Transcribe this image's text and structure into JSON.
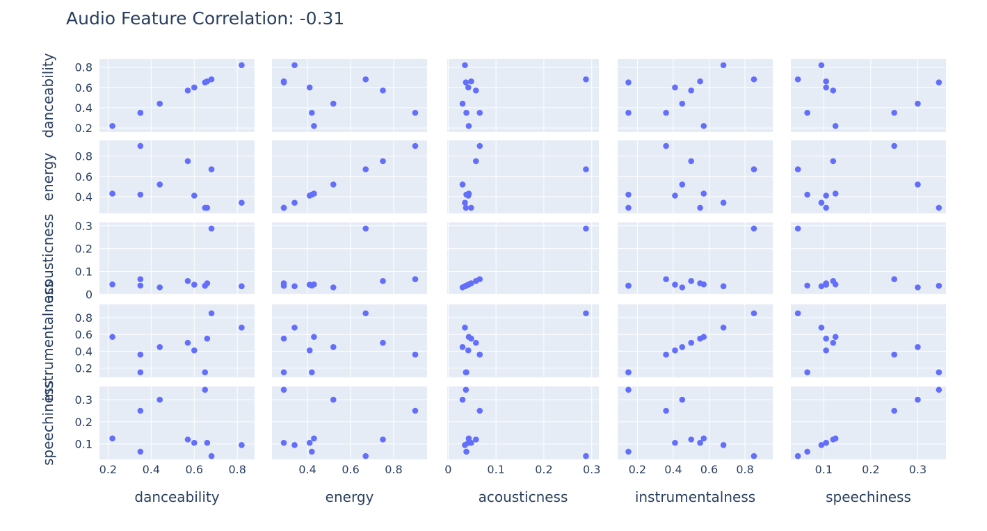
{
  "chart_data": {
    "type": "scatter",
    "subtype": "scatter-matrix",
    "title": "Audio Feature Correlation: -0.31",
    "dimensions": [
      "danceability",
      "energy",
      "acousticness",
      "instrumentalness",
      "speechiness"
    ],
    "ticks": {
      "danceability": [
        "0.2",
        "0.4",
        "0.6",
        "0.8"
      ],
      "energy": [
        "0.4",
        "0.6",
        "0.8"
      ],
      "acousticness": [
        "0",
        "0.1",
        "0.2",
        "0.3"
      ],
      "instrumentalness": [
        "0.2",
        "0.4",
        "0.6",
        "0.8"
      ],
      "speechiness": [
        "0.1",
        "0.2",
        "0.3"
      ]
    },
    "ranges": {
      "danceability": [
        0.16,
        0.88
      ],
      "energy": [
        0.235,
        0.955
      ],
      "acousticness": [
        -0.002,
        0.315
      ],
      "instrumentalness": [
        0.09,
        0.955
      ],
      "speechiness": [
        0.03,
        0.36
      ]
    },
    "records": {
      "danceability": [
        0.22,
        0.35,
        0.35,
        0.44,
        0.57,
        0.6,
        0.65,
        0.66,
        0.68,
        0.82
      ],
      "energy": [
        0.43,
        0.9,
        0.42,
        0.52,
        0.75,
        0.41,
        0.29,
        0.29,
        0.67,
        0.34
      ],
      "acousticness": [
        0.043,
        0.066,
        0.038,
        0.03,
        0.058,
        0.042,
        0.037,
        0.048,
        0.288,
        0.035
      ],
      "instrumentalness": [
        0.57,
        0.36,
        0.15,
        0.45,
        0.5,
        0.41,
        0.15,
        0.55,
        0.85,
        0.68
      ],
      "speechiness": [
        0.125,
        0.25,
        0.065,
        0.3,
        0.12,
        0.105,
        0.345,
        0.105,
        0.045,
        0.095
      ]
    },
    "marker_color": "#636efa",
    "panel_background": "#e5ecf6",
    "grid": true
  }
}
